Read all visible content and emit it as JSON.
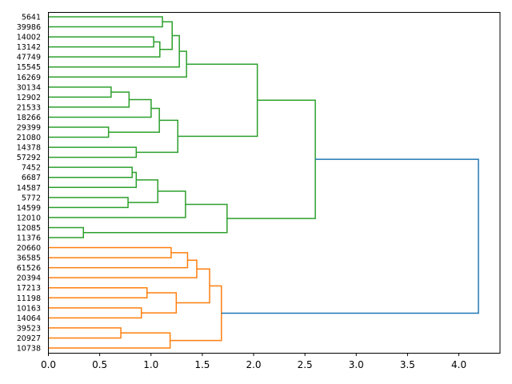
{
  "chart_data": {
    "type": "dendrogram",
    "title": "",
    "xlabel": "",
    "ylabel": "",
    "orientation": "left",
    "xlim": [
      0,
      4.405
    ],
    "xticks": [
      "0.0",
      "0.5",
      "1.0",
      "1.5",
      "2.0",
      "2.5",
      "3.0",
      "3.5",
      "4.0"
    ],
    "xtick_values": [
      0,
      0.5,
      1,
      1.5,
      2,
      2.5,
      3,
      3.5,
      4
    ],
    "leaves": [
      "5641",
      "39986",
      "14002",
      "13142",
      "47749",
      "15545",
      "16269",
      "30134",
      "12902",
      "21533",
      "18266",
      "29399",
      "21080",
      "14378",
      "57292",
      "7452",
      "6687",
      "14587",
      "5772",
      "14599",
      "12010",
      "12085",
      "11376",
      "20660",
      "36585",
      "61526",
      "20394",
      "17213",
      "11198",
      "10163",
      "14064",
      "39523",
      "20927",
      "10738"
    ],
    "colors": {
      "above_threshold": "#1f77b4",
      "cluster1": "#2ca02c",
      "cluster2": "#ff7f0e"
    },
    "tree": {
      "h": 4.195,
      "color": "#1f77b4",
      "c": [
        {
          "h": 2.605,
          "color": "#2ca02c",
          "c": [
            {
              "h": 2.04,
              "c": [
                {
                  "h": 1.35,
                  "c": [
                    {
                      "h": 1.28,
                      "c": [
                        {
                          "h": 1.21,
                          "c": [
                            {
                              "h": 1.115,
                              "c": [
                                0,
                                1
                              ]
                            },
                            {
                              "h": 1.09,
                              "c": [
                                {
                                  "h": 1.03,
                                  "c": [
                                    2,
                                    3
                                  ]
                                },
                                4
                              ]
                            }
                          ]
                        },
                        5
                      ]
                    },
                    6
                  ]
                },
                {
                  "h": 1.265,
                  "c": [
                    {
                      "h": 1.085,
                      "c": [
                        {
                          "h": 1.005,
                          "c": [
                            {
                              "h": 0.79,
                              "c": [
                                {
                                  "h": 0.615,
                                  "c": [
                                    7,
                                    8
                                  ]
                                },
                                9
                              ]
                            },
                            10
                          ]
                        },
                        {
                          "h": 0.59,
                          "c": [
                            11,
                            12
                          ]
                        }
                      ]
                    },
                    {
                      "h": 0.86,
                      "c": [
                        13,
                        14
                      ]
                    }
                  ]
                }
              ]
            },
            {
              "h": 1.745,
              "c": [
                {
                  "h": 1.34,
                  "c": [
                    {
                      "h": 1.07,
                      "c": [
                        {
                          "h": 0.86,
                          "c": [
                            {
                              "h": 0.82,
                              "c": [
                                15,
                                16
                              ]
                            },
                            17
                          ]
                        },
                        {
                          "h": 0.78,
                          "c": [
                            18,
                            19
                          ]
                        }
                      ]
                    },
                    20
                  ]
                },
                {
                  "h": 0.345,
                  "c": [
                    21,
                    22
                  ]
                }
              ]
            }
          ]
        },
        {
          "h": 1.69,
          "color": "#ff7f0e",
          "c": [
            {
              "h": 1.575,
              "c": [
                {
                  "h": 1.45,
                  "c": [
                    {
                      "h": 1.36,
                      "c": [
                        {
                          "h": 1.2,
                          "c": [
                            23,
                            24
                          ]
                        },
                        25
                      ]
                    },
                    26
                  ]
                },
                {
                  "h": 1.25,
                  "c": [
                    {
                      "h": 0.965,
                      "c": [
                        27,
                        28
                      ]
                    },
                    {
                      "h": 0.91,
                      "c": [
                        29,
                        30
                      ]
                    }
                  ]
                }
              ]
            },
            {
              "h": 1.19,
              "c": [
                {
                  "h": 0.71,
                  "c": [
                    31,
                    32
                  ]
                },
                33
              ]
            }
          ]
        }
      ]
    }
  }
}
